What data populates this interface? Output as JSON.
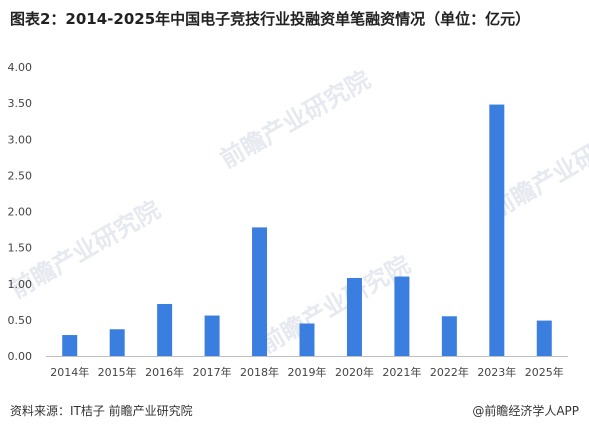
{
  "chart_data": {
    "type": "bar",
    "title": "图表2：2014-2025年中国电子竞技行业投融资单笔融资情况（单位：亿元）",
    "categories": [
      "2014年",
      "2015年",
      "2016年",
      "2017年",
      "2018年",
      "2019年",
      "2020年",
      "2021年",
      "2022年",
      "2023年",
      "2025年"
    ],
    "values": [
      0.29,
      0.37,
      0.72,
      0.56,
      1.78,
      0.45,
      1.08,
      1.1,
      0.55,
      3.48,
      0.49
    ],
    "yticks": [
      "0.00",
      "0.50",
      "1.00",
      "1.50",
      "2.00",
      "2.50",
      "3.00",
      "3.50",
      "4.00"
    ],
    "ylim": [
      0,
      4
    ],
    "xlabel": "",
    "ylabel": "",
    "grid": false,
    "bar_color": "#3a7ee0"
  },
  "footer": {
    "source": "资料来源：IT桔子  前瞻产业研究院",
    "brand": "@前瞻经济学人APP"
  },
  "watermark": {
    "text": "前瞻产业研究院"
  }
}
